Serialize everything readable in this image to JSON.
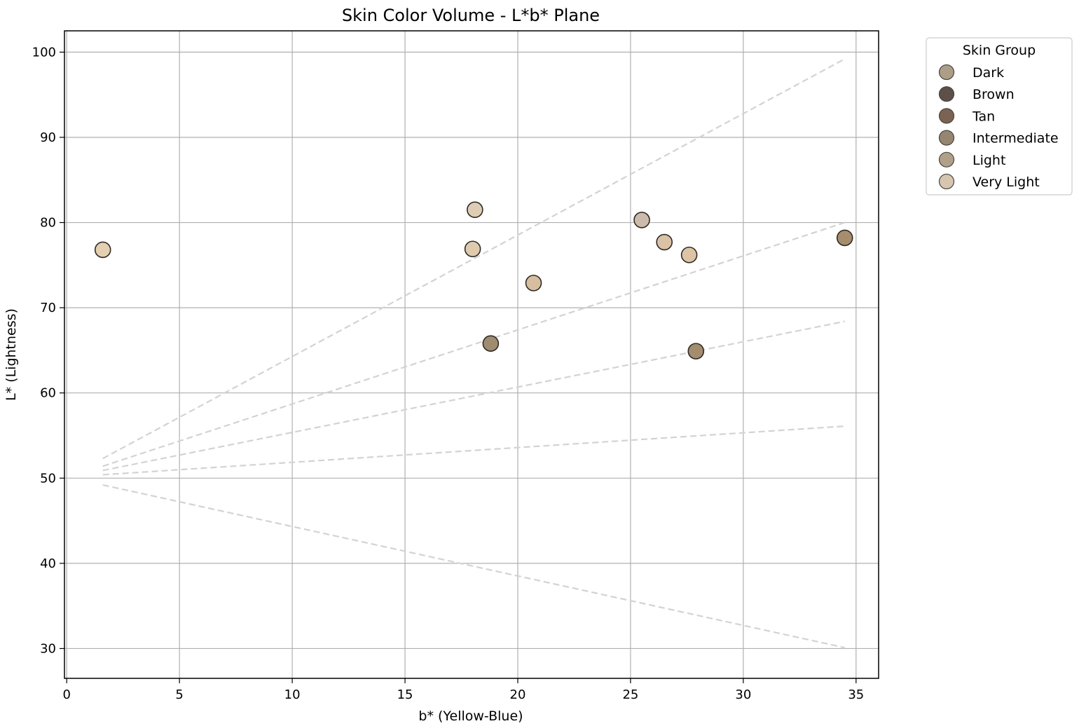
{
  "chart_data": {
    "type": "scatter",
    "title": "Skin Color Volume - L*b* Plane",
    "xlabel": "b* (Yellow-Blue)",
    "ylabel": "L* (Lightness)",
    "xlim": [
      -0.1,
      36
    ],
    "ylim": [
      26.5,
      102.5
    ],
    "xticks": [
      0,
      5,
      10,
      15,
      20,
      25,
      30,
      35
    ],
    "yticks": [
      30,
      40,
      50,
      60,
      70,
      80,
      90,
      100
    ],
    "grid": true,
    "legend": {
      "title": "Skin Group",
      "placement": "outside-top-right",
      "entries": [
        {
          "name": "Dark",
          "color": "#ad9e87"
        },
        {
          "name": "Brown",
          "color": "#5c5048"
        },
        {
          "name": "Tan",
          "color": "#7a6352"
        },
        {
          "name": "Intermediate",
          "color": "#968670"
        },
        {
          "name": "Light",
          "color": "#b0a08a"
        },
        {
          "name": "Very Light",
          "color": "#d6c6b0"
        }
      ]
    },
    "points": [
      {
        "x": 1.6,
        "y": 76.8,
        "color": "#e4cfb0"
      },
      {
        "x": 18.1,
        "y": 81.5,
        "color": "#dfccb4"
      },
      {
        "x": 18.0,
        "y": 76.9,
        "color": "#dfcaae"
      },
      {
        "x": 20.7,
        "y": 72.9,
        "color": "#d7bea1"
      },
      {
        "x": 18.8,
        "y": 65.8,
        "color": "#9f8b70"
      },
      {
        "x": 25.5,
        "y": 80.3,
        "color": "#ccbbaa"
      },
      {
        "x": 26.5,
        "y": 77.7,
        "color": "#d9c2a6"
      },
      {
        "x": 27.6,
        "y": 76.2,
        "color": "#ddc4a4"
      },
      {
        "x": 27.9,
        "y": 64.9,
        "color": "#a48c6e"
      },
      {
        "x": 34.5,
        "y": 78.2,
        "color": "#a68d6e"
      }
    ],
    "reference_lines": [
      {
        "x": [
          1.6,
          34.5
        ],
        "y": [
          52.3,
          99.2
        ]
      },
      {
        "x": [
          1.6,
          34.5
        ],
        "y": [
          51.4,
          80.0
        ]
      },
      {
        "x": [
          1.6,
          34.5
        ],
        "y": [
          50.9,
          68.4
        ]
      },
      {
        "x": [
          1.6,
          34.5
        ],
        "y": [
          50.4,
          56.1
        ]
      },
      {
        "x": [
          1.6,
          34.5
        ],
        "y": [
          49.2,
          30.1
        ]
      }
    ]
  }
}
